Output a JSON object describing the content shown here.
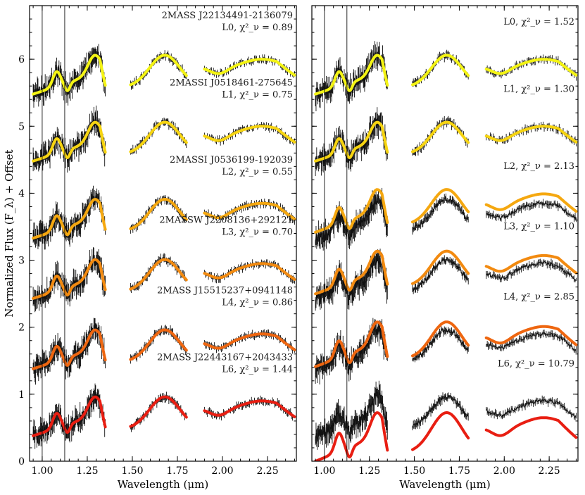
{
  "chart_data": [
    {
      "type": "line",
      "name": "left-panel",
      "xlabel": "Wavelength (μm)",
      "ylabel": "Normalized Flux (F_λ) + Offset",
      "xlim": [
        0.93,
        2.41
      ],
      "ylim": [
        0,
        6.8
      ],
      "xticks": [
        1.0,
        1.25,
        1.5,
        1.75,
        2.0,
        2.25
      ],
      "xticklabels": [
        "1.00",
        "1.25",
        "1.50",
        "1.75",
        "2.00",
        "2.25"
      ],
      "yticks": [
        0,
        1,
        2,
        3,
        4,
        5,
        6
      ],
      "yticklabels": [
        "0",
        "1",
        "2",
        "3",
        "4",
        "5",
        "6"
      ],
      "spectra": [
        {
          "name": "2MASS J22134491-2136079",
          "label": "L0, χ²_ν = 0.89",
          "offset": 5.1,
          "color": "#f4f414",
          "model_shift": 0.0,
          "model_scale": 1.0
        },
        {
          "name": "2MASSI J0518461-275645",
          "label": "L1, χ²_ν = 0.75",
          "offset": 4.1,
          "color": "#f6d411",
          "model_shift": 0.0,
          "model_scale": 1.0
        },
        {
          "name": "2MASSI J0536199-192039",
          "label": "L2, χ²_ν = 0.55",
          "offset": 2.95,
          "color": "#f5a810",
          "model_shift": 0.0,
          "model_scale": 1.0
        },
        {
          "name": "2MASSW J2208136+292121",
          "label": "L3, χ²_ν = 0.70",
          "offset": 2.05,
          "color": "#f28a10",
          "model_shift": 0.0,
          "model_scale": 1.0
        },
        {
          "name": "2MASS J15515237+0941148",
          "label": "L4, χ²_ν = 0.86",
          "offset": 1.0,
          "color": "#ee6610",
          "model_shift": 0.0,
          "model_scale": 1.0
        },
        {
          "name": "2MASS J22443167+2043433",
          "label": "L6, χ²_ν = 1.44",
          "offset": 0.0,
          "color": "#e81e12",
          "model_shift": 0.0,
          "model_scale": 1.0
        }
      ]
    },
    {
      "type": "line",
      "name": "right-panel",
      "xlabel": "Wavelength (μm)",
      "xlim": [
        0.93,
        2.41
      ],
      "ylim": [
        0,
        6.8
      ],
      "xticks": [
        1.0,
        1.25,
        1.5,
        1.75,
        2.0,
        2.25
      ],
      "xticklabels": [
        "1.00",
        "1.25",
        "1.50",
        "1.75",
        "2.00",
        "2.25"
      ],
      "yticks": [
        0,
        1,
        2,
        3,
        4,
        5,
        6
      ],
      "spectra": [
        {
          "name": "",
          "label": "L0, χ²_ν = 1.52",
          "offset": 5.1,
          "color": "#f4f414",
          "model_shift": 0.0,
          "model_scale": 1.0
        },
        {
          "name": "",
          "label": "L1, χ²_ν = 1.30",
          "offset": 4.1,
          "color": "#f6d411",
          "model_shift": 0.0,
          "model_scale": 1.0
        },
        {
          "name": "",
          "label": "L2, χ²_ν = 2.13",
          "offset": 2.95,
          "color": "#f5a810",
          "model_shift": 0.1,
          "model_scale": 1.1
        },
        {
          "name": "",
          "label": "L3, χ²_ν = 1.10",
          "offset": 2.05,
          "color": "#f28a10",
          "model_shift": 0.08,
          "model_scale": 1.1
        },
        {
          "name": "",
          "label": "L4, χ²_ν = 2.85",
          "offset": 1.0,
          "color": "#ee6610",
          "model_shift": 0.05,
          "model_scale": 1.15
        },
        {
          "name": "",
          "label": "L6, χ²_ν = 10.79",
          "offset": 0.0,
          "color": "#e81e12",
          "model_shift": -0.35,
          "model_scale": 1.25
        }
      ]
    }
  ]
}
